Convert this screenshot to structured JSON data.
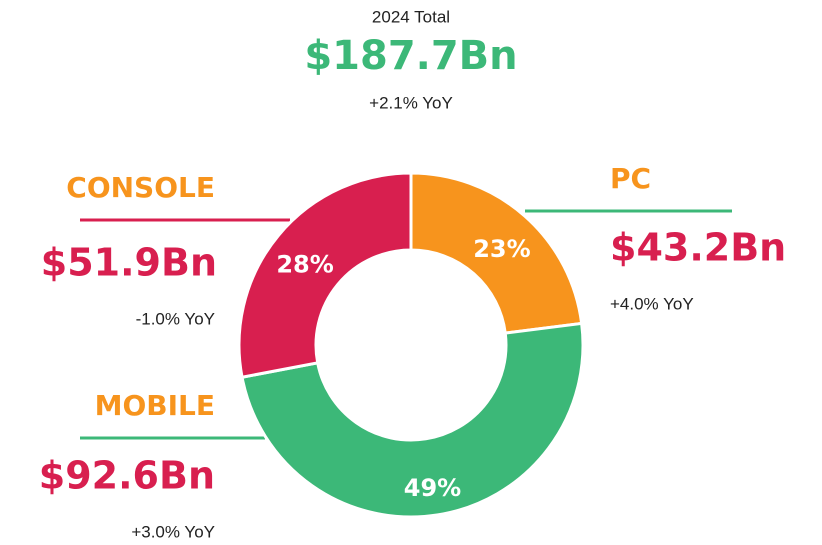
{
  "chart_data": {
    "type": "pie",
    "donut": true,
    "subtitle": "2024 Total",
    "title": "$187.7Bn",
    "title_change": "+2.1% YoY",
    "title_color": "#3cb878",
    "categories": [
      "PC",
      "MOBILE",
      "CONSOLE"
    ],
    "values": [
      23,
      49,
      28
    ],
    "value_labels": [
      "23%",
      "49%",
      "28%"
    ],
    "colors": [
      "#f7941d",
      "#3cb878",
      "#d81f4f"
    ],
    "amounts": [
      "$43.2Bn",
      "$92.6Bn",
      "$51.9Bn"
    ],
    "changes": [
      "+4.0% YoY",
      "+3.0% YoY",
      "-1.0% YoY"
    ],
    "category_color": "#f7941d",
    "amount_color": "#d81f4f"
  }
}
